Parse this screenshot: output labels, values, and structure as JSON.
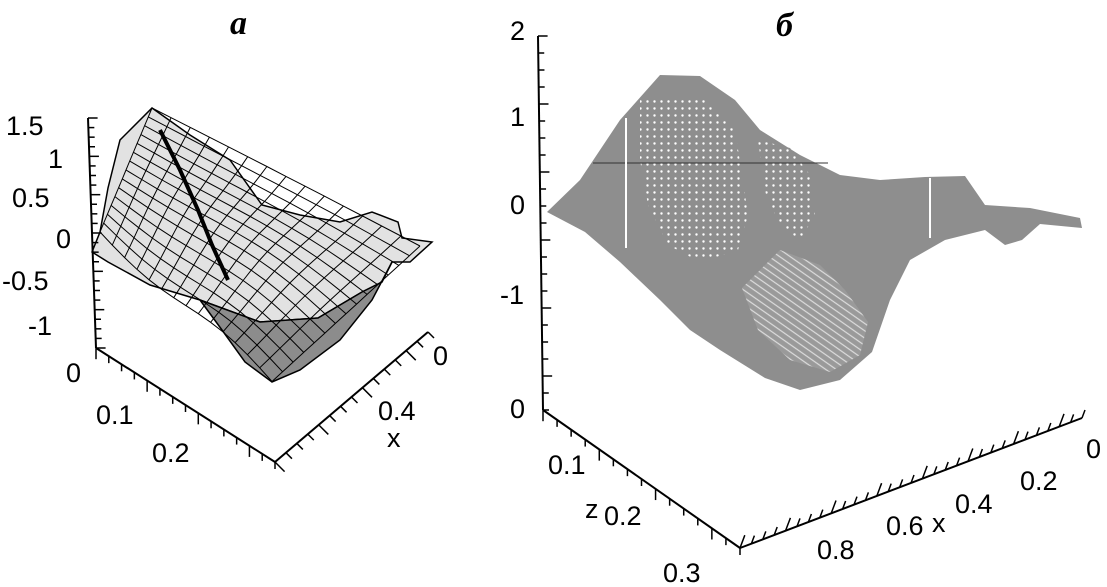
{
  "panels": [
    {
      "label": "a",
      "chart_data": {
        "type": "surface",
        "render": "wireframe-shaded",
        "z_ticks": [
          "1.5",
          "1",
          "0.5",
          "0",
          "-0.5",
          "-1"
        ],
        "zlim": [
          -1,
          1.5
        ],
        "y_ticks": [
          "0",
          "0.1",
          "0.2"
        ],
        "ylim": [
          0,
          0.25
        ],
        "x_ticks": [
          "0",
          "0.4"
        ],
        "xlabel": "x",
        "xlim": [
          0,
          0.5
        ],
        "colors": {
          "surface": "#e2e2e2",
          "shade": "#8c8c8c",
          "mesh": "#000000"
        }
      }
    },
    {
      "label": "б",
      "chart_data": {
        "type": "surface",
        "render": "point-shaded",
        "z_ticks": [
          "2",
          "1",
          "0",
          "-1"
        ],
        "zlim": [
          -1.8,
          2
        ],
        "y_ticks": [
          "0",
          "0.1",
          "0.2",
          "0.3"
        ],
        "ylabel": "z",
        "ylim": [
          0,
          0.3
        ],
        "x_ticks": [
          "0",
          "0.2",
          "0.4",
          "0.6",
          "0.8"
        ],
        "xlabel": "x",
        "xlim": [
          0,
          1
        ],
        "colors": {
          "surface": "#8e8e8e",
          "dots": "#ffffff"
        }
      }
    }
  ]
}
